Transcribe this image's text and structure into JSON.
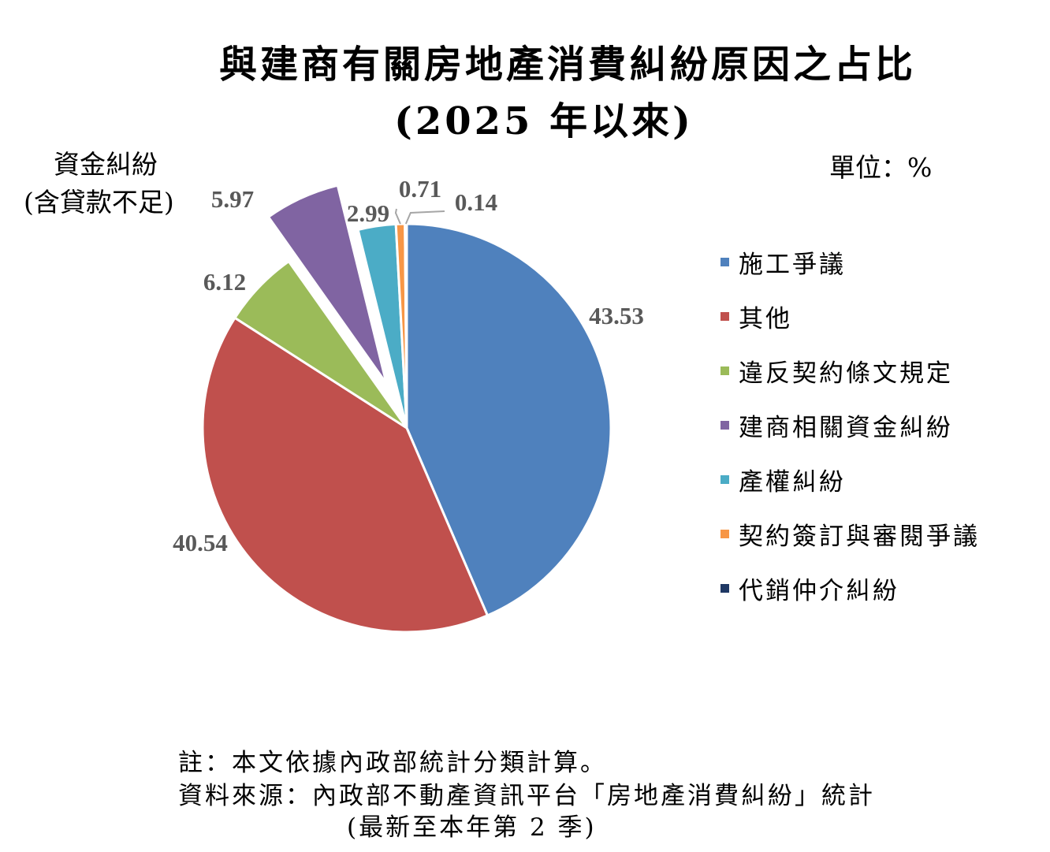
{
  "title": {
    "line1": "與建商有關房地產消費糾紛原因之占比",
    "line2": "(2025 年以來)"
  },
  "unit_label": "單位：%",
  "callout": {
    "line1": "資金糾紛",
    "line2": "(含貸款不足)"
  },
  "notes": {
    "note": "註：本文依據內政部統計分類計算。",
    "source": "資料來源：內政部不動產資訊平台「房地產消費糾紛」統計",
    "period": "(最新至本年第 2 季)"
  },
  "chart_data": {
    "type": "pie",
    "unit": "%",
    "legend_position": "right",
    "slices": [
      {
        "name": "施工爭議",
        "value": 43.53,
        "label": "43.53",
        "color": "#4F81BD",
        "exploded": false
      },
      {
        "name": "其他",
        "value": 40.54,
        "label": "40.54",
        "color": "#C0504D",
        "exploded": false
      },
      {
        "name": "違反契約條文規定",
        "value": 6.12,
        "label": "6.12",
        "color": "#9BBB59",
        "exploded": false
      },
      {
        "name": "建商相關資金糾紛",
        "value": 5.97,
        "label": "5.97",
        "color": "#8064A2",
        "exploded": true
      },
      {
        "name": "產權糾紛",
        "value": 2.99,
        "label": "2.99",
        "color": "#4BACC6",
        "exploded": false
      },
      {
        "name": "契約簽訂與審閱爭議",
        "value": 0.71,
        "label": "0.71",
        "color": "#F79646",
        "exploded": false
      },
      {
        "name": "代銷仲介糾紛",
        "value": 0.14,
        "label": "0.14",
        "color": "#1F3864",
        "exploded": false
      }
    ]
  }
}
